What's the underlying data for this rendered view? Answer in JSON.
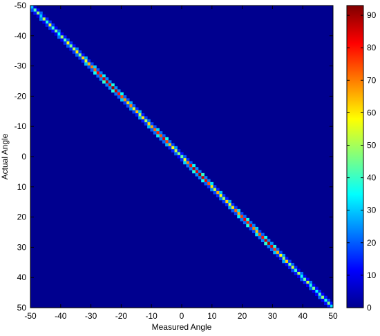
{
  "chart_data": {
    "type": "heatmap",
    "title": "",
    "xlabel": "Measured Angle",
    "ylabel": "Actual Angle",
    "xlim": [
      -50,
      50
    ],
    "ylim": [
      -50,
      50
    ],
    "y_direction": "reversed (-50 at top, 50 at bottom)",
    "x_ticks": [
      "-50",
      "-40",
      "-30",
      "-20",
      "-10",
      "0",
      "10",
      "20",
      "30",
      "40",
      "50"
    ],
    "y_ticks": [
      "-50",
      "-40",
      "-30",
      "-20",
      "-10",
      "0",
      "10",
      "20",
      "30",
      "40",
      "50"
    ],
    "colormap": "jet",
    "background_color": "#00008f",
    "colorbar": {
      "range": [
        0,
        93
      ],
      "ticks": [
        "0",
        "10",
        "20",
        "30",
        "40",
        "50",
        "60",
        "70",
        "80",
        "90"
      ],
      "placement": "right"
    },
    "diagonal_counts": [
      {
        "angle": -50,
        "value": 28
      },
      {
        "angle": -49,
        "value": 42
      },
      {
        "angle": -48,
        "value": 48
      },
      {
        "angle": -47,
        "value": 30
      },
      {
        "angle": -46,
        "value": 52
      },
      {
        "angle": -45,
        "value": 38
      },
      {
        "angle": -44,
        "value": 55
      },
      {
        "angle": -43,
        "value": 40
      },
      {
        "angle": -42,
        "value": 45
      },
      {
        "angle": -41,
        "value": 35
      },
      {
        "angle": -40,
        "value": 50
      },
      {
        "angle": -39,
        "value": 42
      },
      {
        "angle": -38,
        "value": 58
      },
      {
        "angle": -37,
        "value": 46
      },
      {
        "angle": -36,
        "value": 52
      },
      {
        "angle": -35,
        "value": 60
      },
      {
        "angle": -34,
        "value": 48
      },
      {
        "angle": -33,
        "value": 62
      },
      {
        "angle": -32,
        "value": 55
      },
      {
        "angle": -31,
        "value": 66
      },
      {
        "angle": -30,
        "value": 70
      },
      {
        "angle": -29,
        "value": 72
      },
      {
        "angle": -28,
        "value": 82
      },
      {
        "angle": -27,
        "value": 78
      },
      {
        "angle": -26,
        "value": 85
      },
      {
        "angle": -25,
        "value": 88
      },
      {
        "angle": -24,
        "value": 84
      },
      {
        "angle": -23,
        "value": 90
      },
      {
        "angle": -22,
        "value": 86
      },
      {
        "angle": -21,
        "value": 80
      },
      {
        "angle": -20,
        "value": 74
      },
      {
        "angle": -19,
        "value": 68
      },
      {
        "angle": -18,
        "value": 62
      },
      {
        "angle": -17,
        "value": 70
      },
      {
        "angle": -16,
        "value": 56
      },
      {
        "angle": -15,
        "value": 64
      },
      {
        "angle": -14,
        "value": 52
      },
      {
        "angle": -13,
        "value": 60
      },
      {
        "angle": -12,
        "value": 50
      },
      {
        "angle": -11,
        "value": 62
      },
      {
        "angle": -10,
        "value": 66
      },
      {
        "angle": -9,
        "value": 72
      },
      {
        "angle": -8,
        "value": 78
      },
      {
        "angle": -7,
        "value": 74
      },
      {
        "angle": -6,
        "value": 84
      },
      {
        "angle": -5,
        "value": 76
      },
      {
        "angle": -4,
        "value": 64
      },
      {
        "angle": -3,
        "value": 58
      },
      {
        "angle": -2,
        "value": 52
      },
      {
        "angle": -1,
        "value": 48
      },
      {
        "angle": 0,
        "value": 44
      },
      {
        "angle": 1,
        "value": 56
      },
      {
        "angle": 2,
        "value": 70
      },
      {
        "angle": 3,
        "value": 80
      },
      {
        "angle": 4,
        "value": 88
      },
      {
        "angle": 5,
        "value": 84
      },
      {
        "angle": 6,
        "value": 90
      },
      {
        "angle": 7,
        "value": 86
      },
      {
        "angle": 8,
        "value": 82
      },
      {
        "angle": 9,
        "value": 74
      },
      {
        "angle": 10,
        "value": 60
      },
      {
        "angle": 11,
        "value": 54
      },
      {
        "angle": 12,
        "value": 66
      },
      {
        "angle": 13,
        "value": 58
      },
      {
        "angle": 14,
        "value": 50
      },
      {
        "angle": 15,
        "value": 62
      },
      {
        "angle": 16,
        "value": 56
      },
      {
        "angle": 17,
        "value": 60
      },
      {
        "angle": 18,
        "value": 72
      },
      {
        "angle": 19,
        "value": 66
      },
      {
        "angle": 20,
        "value": 76
      },
      {
        "angle": 21,
        "value": 82
      },
      {
        "angle": 22,
        "value": 78
      },
      {
        "angle": 23,
        "value": 84
      },
      {
        "angle": 24,
        "value": 70
      },
      {
        "angle": 25,
        "value": 64
      },
      {
        "angle": 26,
        "value": 74
      },
      {
        "angle": 27,
        "value": 80
      },
      {
        "angle": 28,
        "value": 86
      },
      {
        "angle": 29,
        "value": 90
      },
      {
        "angle": 30,
        "value": 84
      },
      {
        "angle": 31,
        "value": 76
      },
      {
        "angle": 32,
        "value": 66
      },
      {
        "angle": 33,
        "value": 58
      },
      {
        "angle": 34,
        "value": 50
      },
      {
        "angle": 35,
        "value": 62
      },
      {
        "angle": 36,
        "value": 46
      },
      {
        "angle": 37,
        "value": 54
      },
      {
        "angle": 38,
        "value": 40
      },
      {
        "angle": 39,
        "value": 50
      },
      {
        "angle": 40,
        "value": 36
      },
      {
        "angle": 41,
        "value": 44
      },
      {
        "angle": 42,
        "value": 52
      },
      {
        "angle": 43,
        "value": 38
      },
      {
        "angle": 44,
        "value": 46
      },
      {
        "angle": 45,
        "value": 34
      },
      {
        "angle": 46,
        "value": 42
      },
      {
        "angle": 47,
        "value": 48
      },
      {
        "angle": 48,
        "value": 38
      },
      {
        "angle": 49,
        "value": 46
      },
      {
        "angle": 50,
        "value": 32
      }
    ],
    "off_diagonal_spread": 1,
    "off_diagonal_fraction": 0.35
  }
}
